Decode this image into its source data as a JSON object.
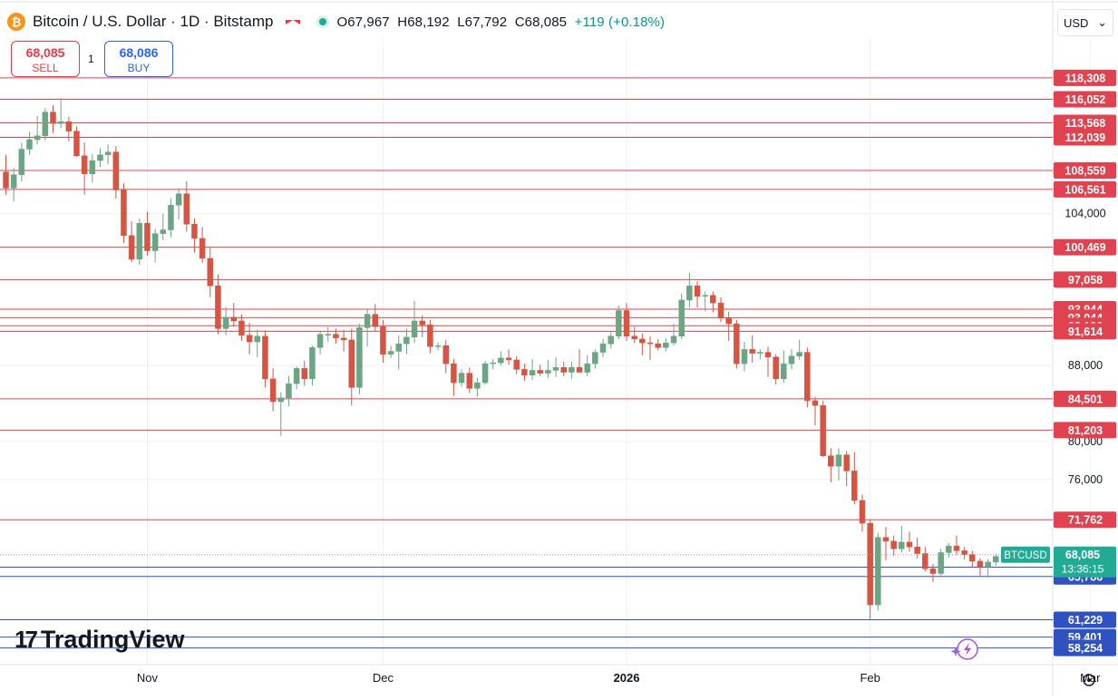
{
  "header": {
    "coin_glyph": "₿",
    "title": "Bitcoin / U.S. Dollar · 1D · Bitstamp",
    "ohlc_o": "O67,967",
    "ohlc_h": "H68,192",
    "ohlc_l": "L67,792",
    "ohlc_c": "C68,085",
    "change": "+119 (+0.18%)"
  },
  "trade": {
    "sell_price": "68,085",
    "sell_label": "SELL",
    "quantity": "1",
    "buy_price": "68,086",
    "buy_label": "BUY"
  },
  "currency_selector": {
    "value": "USD",
    "chevron": "⌄"
  },
  "logo": {
    "text": "TradingView",
    "mark": "17"
  },
  "colors": {
    "up": "#6ba583",
    "down": "#d75442",
    "red_level": "#e0434f",
    "blue_level": "#2f52c0",
    "price_line": "#22ab94"
  },
  "chart_data": {
    "type": "candlestick",
    "symbol": "BTCUSD",
    "timeframe": "1D",
    "ylim": [
      56500,
      122500
    ],
    "y_ticks": [
      76000,
      80000,
      88000,
      104000
    ],
    "x_ticks": [
      {
        "label": "Nov",
        "date": "2025-11-01"
      },
      {
        "label": "Dec",
        "date": "2025-12-01"
      },
      {
        "label": "2026",
        "date": "2026-01-01",
        "bold": true
      },
      {
        "label": "Feb",
        "date": "2026-02-01"
      },
      {
        "label": "Mar",
        "date": "2026-03-01"
      }
    ],
    "resistance_levels": [
      118308,
      116052,
      113568,
      112039,
      108559,
      106561,
      100469,
      97058,
      93944,
      93044,
      92196,
      91614,
      84501,
      81203,
      71762
    ],
    "support_levels": [
      66773,
      65786,
      61229,
      59401,
      58254
    ],
    "current_price": {
      "label": "BTCUSD",
      "value": "68,085",
      "countdown": "13:36:15"
    },
    "first_date": "2025-10-14",
    "candles": [
      [
        108400,
        110200,
        106000,
        106700
      ],
      [
        106700,
        108800,
        105300,
        108100
      ],
      [
        108100,
        111500,
        107400,
        110800
      ],
      [
        110800,
        112600,
        110200,
        111800
      ],
      [
        111800,
        114300,
        111300,
        112200
      ],
      [
        112200,
        115100,
        111700,
        114700
      ],
      [
        114700,
        115400,
        112500,
        113500
      ],
      [
        113500,
        116200,
        113000,
        113700
      ],
      [
        113700,
        114200,
        111600,
        112700
      ],
      [
        112700,
        113200,
        110000,
        110100
      ],
      [
        110100,
        111500,
        106000,
        108200
      ],
      [
        108200,
        110300,
        107300,
        109600
      ],
      [
        109600,
        110900,
        108900,
        110200
      ],
      [
        110200,
        111300,
        109200,
        110500
      ],
      [
        110500,
        111100,
        105600,
        106500
      ],
      [
        106500,
        107200,
        100900,
        101700
      ],
      [
        101700,
        103200,
        98900,
        99200
      ],
      [
        99200,
        103500,
        98600,
        103000
      ],
      [
        103000,
        104200,
        99600,
        100100
      ],
      [
        100100,
        102400,
        98900,
        101900
      ],
      [
        101900,
        104000,
        101200,
        102300
      ],
      [
        102300,
        105600,
        101500,
        104900
      ],
      [
        104900,
        106700,
        103400,
        106100
      ],
      [
        106100,
        107400,
        102100,
        102900
      ],
      [
        102900,
        103500,
        99900,
        101400
      ],
      [
        101400,
        102600,
        98800,
        99300
      ],
      [
        99300,
        100400,
        95200,
        96400
      ],
      [
        96400,
        97600,
        91300,
        91900
      ],
      [
        91900,
        94200,
        91200,
        93100
      ],
      [
        93100,
        94600,
        92100,
        92700
      ],
      [
        92700,
        93400,
        90600,
        91200
      ],
      [
        91200,
        92500,
        89200,
        90500
      ],
      [
        90500,
        91800,
        88900,
        91100
      ],
      [
        91100,
        91700,
        85700,
        86600
      ],
      [
        86600,
        87700,
        83200,
        84200
      ],
      [
        84200,
        85200,
        80600,
        84600
      ],
      [
        84600,
        86900,
        83700,
        86100
      ],
      [
        86100,
        87900,
        85500,
        87700
      ],
      [
        87700,
        88500,
        85900,
        86600
      ],
      [
        86600,
        90100,
        85900,
        89900
      ],
      [
        89900,
        91600,
        89200,
        91300
      ],
      [
        91300,
        92100,
        90500,
        91300
      ],
      [
        91300,
        91900,
        90300,
        90900
      ],
      [
        90900,
        91800,
        89500,
        90700
      ],
      [
        90700,
        91900,
        83800,
        85700
      ],
      [
        85700,
        92400,
        85000,
        92000
      ],
      [
        92000,
        94000,
        90000,
        93400
      ],
      [
        93400,
        94500,
        91600,
        92100
      ],
      [
        92100,
        92800,
        88300,
        89200
      ],
      [
        89200,
        90100,
        88800,
        89500
      ],
      [
        89500,
        91200,
        87600,
        90300
      ],
      [
        90300,
        91900,
        89200,
        91000
      ],
      [
        91000,
        94800,
        90400,
        92700
      ],
      [
        92700,
        93300,
        91000,
        92300
      ],
      [
        92300,
        92800,
        89300,
        90000
      ],
      [
        90000,
        90400,
        89600,
        90100
      ],
      [
        90100,
        90700,
        87200,
        88200
      ],
      [
        88200,
        88700,
        84800,
        86200
      ],
      [
        86200,
        87600,
        85800,
        87200
      ],
      [
        87200,
        87800,
        85100,
        85600
      ],
      [
        85600,
        86700,
        84700,
        86200
      ],
      [
        86200,
        88500,
        86000,
        88200
      ],
      [
        88200,
        88700,
        87600,
        88300
      ],
      [
        88300,
        89500,
        88000,
        88800
      ],
      [
        88800,
        89700,
        88100,
        88600
      ],
      [
        88600,
        89000,
        87100,
        87600
      ],
      [
        87600,
        88200,
        86400,
        87000
      ],
      [
        87000,
        88700,
        86500,
        87500
      ],
      [
        87500,
        88100,
        86900,
        87200
      ],
      [
        87200,
        88600,
        86700,
        87500
      ],
      [
        87500,
        88900,
        86800,
        87800
      ],
      [
        87800,
        88400,
        86900,
        87300
      ],
      [
        87300,
        88400,
        86600,
        87800
      ],
      [
        87800,
        89700,
        87300,
        87300
      ],
      [
        87300,
        89100,
        86900,
        88200
      ],
      [
        88200,
        89700,
        87700,
        89400
      ],
      [
        89400,
        90800,
        88900,
        90300
      ],
      [
        90300,
        91600,
        89800,
        91100
      ],
      [
        91100,
        94300,
        90800,
        93800
      ],
      [
        93800,
        94600,
        90600,
        91100
      ],
      [
        91100,
        92100,
        90400,
        90800
      ],
      [
        90800,
        91400,
        89100,
        90400
      ],
      [
        90400,
        91100,
        88600,
        90300
      ],
      [
        90300,
        90800,
        89600,
        89900
      ],
      [
        89900,
        90900,
        89500,
        90400
      ],
      [
        90400,
        92400,
        90100,
        91100
      ],
      [
        91100,
        95600,
        90800,
        94900
      ],
      [
        94900,
        97800,
        94100,
        96400
      ],
      [
        96400,
        96900,
        94100,
        95300
      ],
      [
        95300,
        95800,
        93700,
        95400
      ],
      [
        95400,
        95800,
        93600,
        94600
      ],
      [
        94600,
        95200,
        92600,
        93000
      ],
      [
        93000,
        93700,
        90600,
        92400
      ],
      [
        92400,
        92800,
        87700,
        88200
      ],
      [
        88200,
        90500,
        87400,
        89700
      ],
      [
        89700,
        91200,
        88300,
        89300
      ],
      [
        89300,
        89700,
        88700,
        89400
      ],
      [
        89400,
        90000,
        86800,
        88900
      ],
      [
        88900,
        89200,
        86000,
        86600
      ],
      [
        86600,
        89600,
        86200,
        88200
      ],
      [
        88200,
        89700,
        87600,
        89000
      ],
      [
        89000,
        90700,
        88600,
        89400
      ],
      [
        89400,
        89900,
        83600,
        84300
      ],
      [
        84300,
        84700,
        81700,
        83800
      ],
      [
        83800,
        84300,
        78400,
        78500
      ],
      [
        78500,
        79300,
        75700,
        77400
      ],
      [
        77400,
        79300,
        75900,
        78600
      ],
      [
        78600,
        79000,
        75300,
        76900
      ],
      [
        76900,
        78900,
        73400,
        73800
      ],
      [
        73800,
        74400,
        70500,
        71400
      ],
      [
        71400,
        71800,
        61300,
        62800
      ],
      [
        62800,
        70400,
        62200,
        69900
      ],
      [
        69900,
        71000,
        67500,
        69500
      ],
      [
        69500,
        70100,
        68000,
        68700
      ],
      [
        68700,
        71100,
        68300,
        69400
      ],
      [
        69400,
        70500,
        68400,
        68900
      ],
      [
        68900,
        69900,
        67700,
        68200
      ],
      [
        68200,
        68900,
        66300,
        66600
      ],
      [
        66600,
        67100,
        65200,
        66100
      ],
      [
        66100,
        68700,
        65900,
        68300
      ],
      [
        68300,
        69300,
        67800,
        69000
      ],
      [
        69000,
        70100,
        68100,
        68500
      ],
      [
        68500,
        68900,
        67600,
        68100
      ],
      [
        68100,
        68500,
        66700,
        67400
      ],
      [
        67400,
        67700,
        65800,
        66800
      ],
      [
        66800,
        67600,
        65700,
        67300
      ],
      [
        67300,
        68200,
        66900,
        67900
      ],
      [
        67900,
        68700,
        67600,
        68100
      ],
      [
        67967,
        68192,
        67792,
        68085
      ]
    ]
  }
}
